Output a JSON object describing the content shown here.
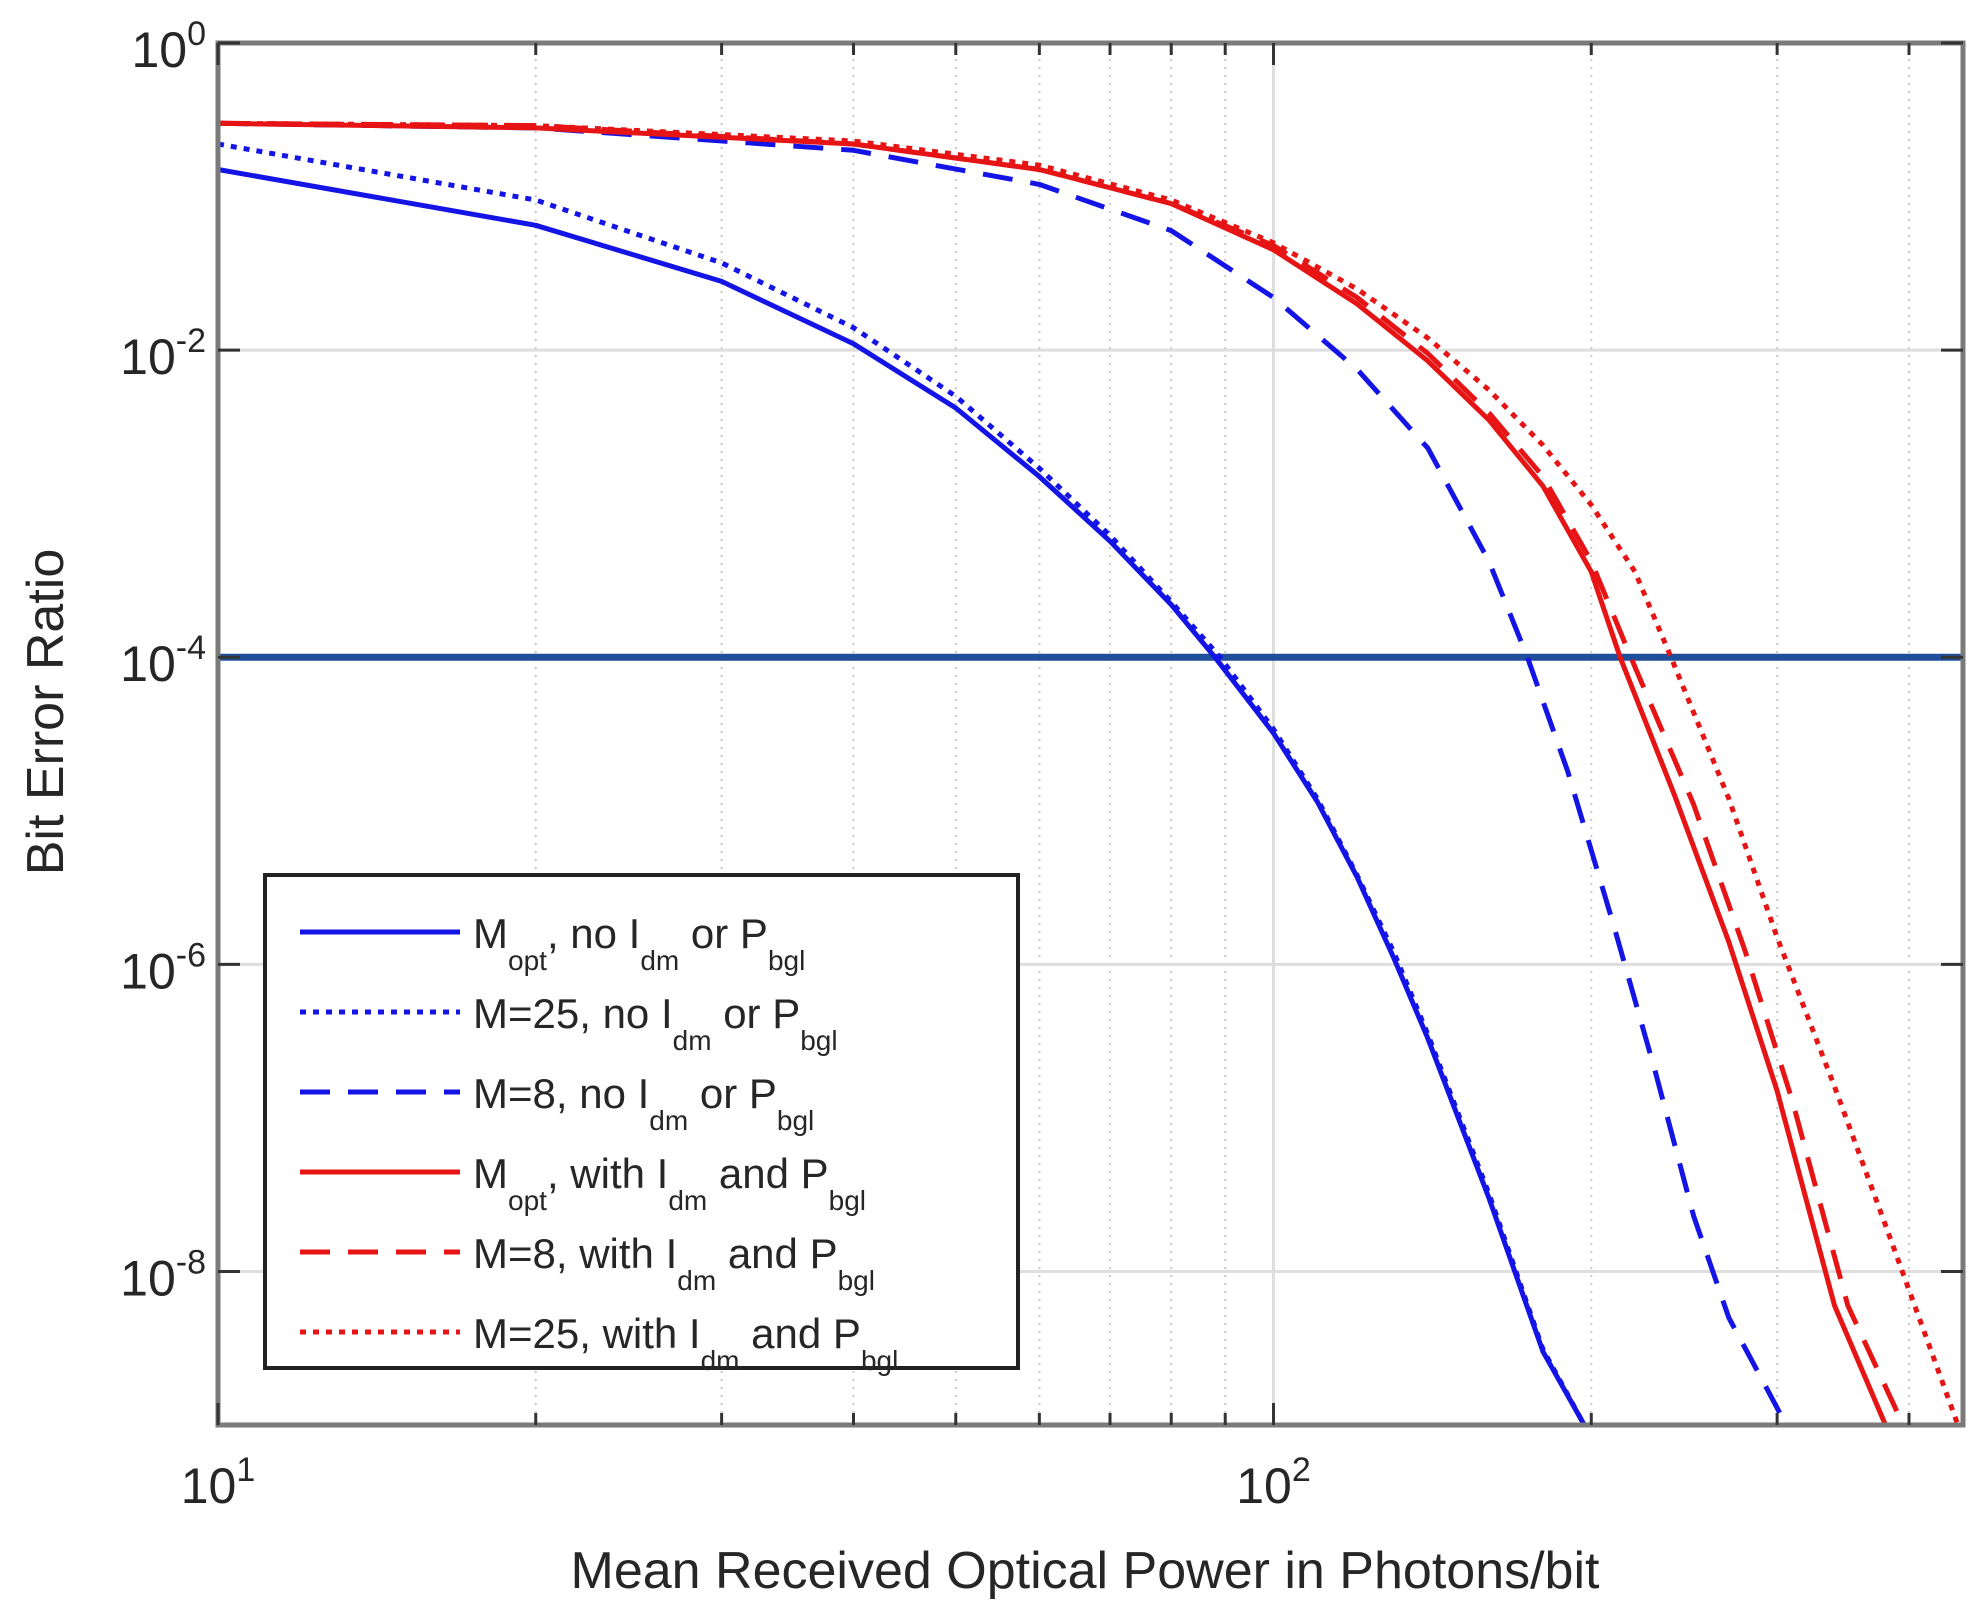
{
  "chart_data": {
    "type": "line",
    "xlabel": "Mean Received Optical Power in Photons/bit",
    "ylabel": "Bit Error Ratio",
    "x_scale": "log",
    "y_scale": "log",
    "xlim": [
      10,
      450
    ],
    "ylim": [
      1e-09,
      1
    ],
    "grid": true,
    "legend_position": "bottom-left",
    "x_ticks": [
      {
        "value": 10,
        "base": "10",
        "exp": "1"
      },
      {
        "value": 100,
        "base": "10",
        "exp": "2"
      }
    ],
    "y_ticks": [
      {
        "value": 1,
        "base": "10",
        "exp": "0"
      },
      {
        "value": 0.01,
        "base": "10",
        "exp": "-2"
      },
      {
        "value": 0.0001,
        "base": "10",
        "exp": "-4"
      },
      {
        "value": 1e-06,
        "base": "10",
        "exp": "-6"
      },
      {
        "value": 1e-08,
        "base": "10",
        "exp": "-8"
      }
    ],
    "reference_line": {
      "y": 0.0001,
      "color": "#1f4e9a"
    },
    "series": [
      {
        "legend": [
          "M",
          "opt",
          ", no I",
          "dm",
          " or P",
          "bgl"
        ],
        "color": "#1414e6",
        "style": "solid",
        "x": [
          10,
          20,
          30,
          40,
          50,
          60,
          70,
          80,
          88,
          100,
          110,
          120,
          130,
          140,
          160,
          180,
          197
        ],
        "y": [
          0.15,
          0.065,
          0.028,
          0.011,
          0.0042,
          0.0015,
          0.00057,
          0.00022,
          0.0001,
          3.2e-05,
          1.15e-05,
          3.7e-06,
          1.1e-06,
          3.3e-07,
          3e-08,
          3e-09,
          1e-09
        ]
      },
      {
        "legend": [
          "M=25, no I",
          "dm",
          " or P",
          "bgl"
        ],
        "color": "#1414e6",
        "style": "dotted",
        "x": [
          10,
          20,
          30,
          40,
          50,
          60,
          70,
          80,
          89,
          100,
          110,
          120,
          130,
          140,
          160,
          180,
          197
        ],
        "y": [
          0.22,
          0.095,
          0.037,
          0.014,
          0.005,
          0.0017,
          0.00062,
          0.00023,
          0.0001,
          3.4e-05,
          1.2e-05,
          3.8e-06,
          1.2e-06,
          3.5e-07,
          3.2e-08,
          3.1e-09,
          1e-09
        ]
      },
      {
        "legend": [
          "M=8, no I",
          "dm",
          " or P",
          "bgl"
        ],
        "color": "#1414e6",
        "style": "dashed",
        "x": [
          10,
          20,
          40,
          60,
          80,
          100,
          120,
          140,
          160,
          174,
          190,
          210,
          230,
          250,
          270,
          290,
          306
        ],
        "y": [
          0.3,
          0.28,
          0.2,
          0.12,
          0.06,
          0.022,
          0.0075,
          0.0023,
          0.00042,
          0.0001,
          1.8e-05,
          1.8e-06,
          2e-07,
          2.3e-08,
          5e-09,
          2e-09,
          1e-09
        ]
      },
      {
        "legend": [
          "M",
          "opt",
          ", with I",
          "dm",
          " and P",
          "bgl"
        ],
        "color": "#e61414",
        "style": "solid",
        "x": [
          10,
          20,
          40,
          60,
          80,
          100,
          120,
          140,
          160,
          180,
          200,
          213,
          240,
          270,
          300,
          340,
          380
        ],
        "y": [
          0.3,
          0.28,
          0.22,
          0.15,
          0.09,
          0.045,
          0.02,
          0.0085,
          0.0035,
          0.0013,
          0.00036,
          0.0001,
          1.25e-05,
          1.4e-06,
          1.5e-07,
          6e-09,
          1e-09
        ]
      },
      {
        "legend": [
          "M=8, with I",
          "dm",
          " and P",
          "bgl"
        ],
        "color": "#e61414",
        "style": "dashed",
        "x": [
          10,
          20,
          40,
          60,
          80,
          100,
          120,
          140,
          160,
          180,
          200,
          218,
          250,
          280,
          310,
          350,
          395
        ],
        "y": [
          0.3,
          0.29,
          0.22,
          0.15,
          0.09,
          0.048,
          0.022,
          0.0095,
          0.0039,
          0.0015,
          0.00042,
          0.0001,
          1.1e-05,
          1.2e-06,
          1.3e-07,
          6e-09,
          1e-09
        ]
      },
      {
        "legend": [
          "M=25, with I",
          "dm",
          " and P",
          "bgl"
        ],
        "color": "#e61414",
        "style": "dotted",
        "x": [
          10,
          20,
          40,
          60,
          80,
          100,
          120,
          140,
          160,
          180,
          200,
          220,
          238,
          270,
          300,
          340,
          380,
          420,
          445
        ],
        "y": [
          0.3,
          0.29,
          0.23,
          0.16,
          0.095,
          0.05,
          0.025,
          0.012,
          0.0055,
          0.0024,
          0.00098,
          0.00036,
          0.0001,
          1.2e-05,
          1.5e-06,
          1.6e-07,
          2e-08,
          3e-09,
          1e-09
        ]
      }
    ]
  }
}
